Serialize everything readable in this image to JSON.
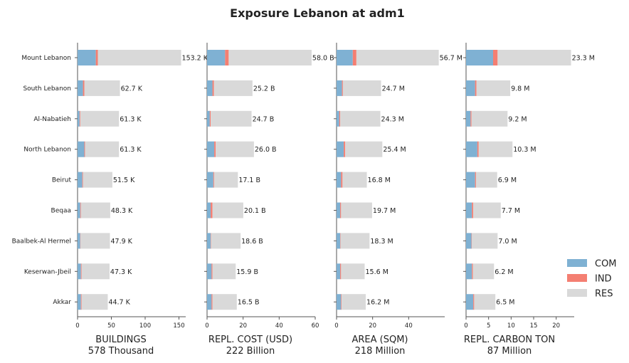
{
  "chart_data": {
    "type": "bar",
    "orientation": "horizontal",
    "stacked": true,
    "title": "Exposure Lebanon at adm1",
    "categories": [
      "Mount Lebanon",
      "South Lebanon",
      "Al-Nabatieh",
      "North Lebanon",
      "Beirut",
      "Beqaa",
      "Baalbek-Al Hermel",
      "Keserwan-Jbeil",
      "Akkar"
    ],
    "legend": {
      "position": "bottom-right",
      "entries": [
        {
          "name": "COM",
          "color": "#7fb1d3"
        },
        {
          "name": "IND",
          "color": "#f47f72"
        },
        {
          "name": "RES",
          "color": "#d9d9d9"
        }
      ]
    },
    "panels": [
      {
        "xlabel": "BUILDINGS",
        "subtitle": "578 Thousand",
        "xlim": [
          0,
          160
        ],
        "xticks": [
          0,
          50,
          100,
          150
        ],
        "series": [
          {
            "name": "COM",
            "values": [
              27,
              8,
              3,
              10,
              7,
              4,
              4,
              5,
              5
            ]
          },
          {
            "name": "IND",
            "values": [
              3,
              2,
              1,
              1,
              1,
              1,
              0.5,
              1,
              1
            ]
          },
          {
            "name": "RES",
            "values": [
              123.2,
              52.7,
              57.3,
              50.3,
              43.5,
              43.3,
              43.4,
              41.3,
              38.7
            ]
          }
        ],
        "totals": [
          153.2,
          62.7,
          61.3,
          61.3,
          51.5,
          48.3,
          47.9,
          47.3,
          44.7
        ],
        "labels": [
          "153.2 K",
          "62.7 K",
          "61.3 K",
          "61.3 K",
          "51.5 K",
          "48.3 K",
          "47.9 K",
          "47.3 K",
          "44.7 K"
        ]
      },
      {
        "xlabel": "REPL. COST (USD)",
        "subtitle": "222 Billion",
        "xlim": [
          0,
          60
        ],
        "xticks": [
          0,
          20,
          40,
          60
        ],
        "series": [
          {
            "name": "COM",
            "values": [
              10,
              3,
              1.5,
              4,
              3.5,
              2,
              2,
              2.5,
              2.5
            ]
          },
          {
            "name": "IND",
            "values": [
              2,
              0.8,
              0.5,
              0.8,
              0.4,
              1,
              0.2,
              0.5,
              0.5
            ]
          },
          {
            "name": "RES",
            "values": [
              46,
              21.4,
              22.7,
              21.2,
              13.2,
              17.1,
              16.4,
              12.9,
              13.5
            ]
          }
        ],
        "totals": [
          58.0,
          25.2,
          24.7,
          26.0,
          17.1,
          20.1,
          18.6,
          15.9,
          16.5
        ],
        "labels": [
          "58.0 B",
          "25.2 B",
          "24.7 B",
          "26.0 B",
          "17.1 B",
          "20.1 B",
          "18.6 B",
          "15.9 B",
          "16.5 B"
        ]
      },
      {
        "xlabel": "AREA (SQM)",
        "subtitle": "218 Million",
        "xlim": [
          0,
          60
        ],
        "xticks": [
          0,
          20,
          40
        ],
        "series": [
          {
            "name": "COM",
            "values": [
              9,
              3,
              1.5,
              4,
              2.5,
              2,
              2,
              2,
              2.5
            ]
          },
          {
            "name": "IND",
            "values": [
              2,
              0.5,
              0.5,
              0.8,
              0.8,
              0.5,
              0.2,
              0.5,
              0.3
            ]
          },
          {
            "name": "RES",
            "values": [
              45.7,
              21.2,
              22.3,
              20.6,
              13.5,
              17.2,
              16.1,
              13.1,
              13.4
            ]
          }
        ],
        "totals": [
          56.7,
          24.7,
          24.3,
          25.4,
          16.8,
          19.7,
          18.3,
          15.6,
          16.2
        ],
        "labels": [
          "56.7 M",
          "24.7 M",
          "24.3 M",
          "25.4 M",
          "16.8 M",
          "19.7 M",
          "18.3 M",
          "15.6 M",
          "16.2 M"
        ]
      },
      {
        "xlabel": "REPL. CARBON TON",
        "subtitle": "87 Million",
        "xlim": [
          0,
          24
        ],
        "xticks": [
          0,
          5,
          10,
          15,
          20
        ],
        "series": [
          {
            "name": "COM",
            "values": [
              6,
              2,
              1,
              2.5,
              2,
              1.3,
              1.2,
              1.3,
              1.6
            ]
          },
          {
            "name": "IND",
            "values": [
              1,
              0.3,
              0.2,
              0.3,
              0.2,
              0.3,
              0.1,
              0.2,
              0.2
            ]
          },
          {
            "name": "RES",
            "values": [
              16.3,
              7.5,
              8.0,
              7.5,
              4.7,
              6.1,
              5.7,
              4.7,
              4.7
            ]
          }
        ],
        "totals": [
          23.3,
          9.8,
          9.2,
          10.3,
          6.9,
          7.7,
          7.0,
          6.2,
          6.5
        ],
        "labels": [
          "23.3 M",
          "9.8 M",
          "9.2 M",
          "10.3 M",
          "6.9 M",
          "7.7 M",
          "7.0 M",
          "6.2 M",
          "6.5 M"
        ]
      }
    ]
  }
}
